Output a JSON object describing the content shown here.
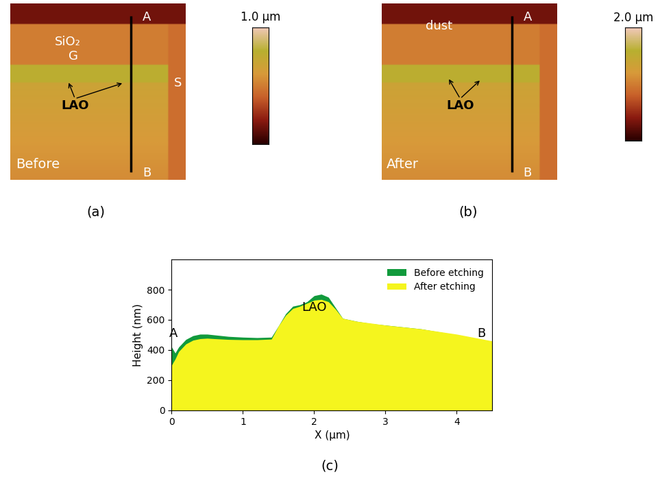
{
  "images": [
    {
      "panel": "(a)",
      "scale_label": "1.0 µm",
      "corner_label": "Before",
      "labels": [
        "SiO₂",
        "G",
        "S",
        "LAO"
      ],
      "line_ends": [
        "A",
        "B"
      ]
    },
    {
      "panel": "(b)",
      "scale_label": "2.0 µm",
      "corner_label": "After",
      "labels": [
        "dust",
        "LAO"
      ],
      "line_ends": [
        "A",
        "B"
      ]
    }
  ],
  "chart_data": {
    "type": "area",
    "panel": "(c)",
    "x_label": "X (µm)",
    "y_label": "Height (nm)",
    "x": [
      0,
      0.05,
      0.1,
      0.2,
      0.3,
      0.4,
      0.5,
      0.6,
      0.8,
      1.0,
      1.2,
      1.4,
      1.5,
      1.6,
      1.7,
      1.8,
      1.9,
      2.0,
      2.1,
      2.2,
      2.3,
      2.4,
      2.5,
      2.6,
      2.8,
      3.0,
      3.5,
      4.0,
      4.5
    ],
    "series": [
      {
        "name": "Before etching",
        "color": "#119a3c",
        "values": [
          420,
          380,
          420,
          470,
          495,
          505,
          505,
          500,
          490,
          485,
          482,
          485,
          560,
          640,
          690,
          700,
          720,
          760,
          770,
          750,
          680,
          610,
          600,
          590,
          575,
          565,
          540,
          500,
          455
        ]
      },
      {
        "name": "After etching",
        "color": "#f5f51e",
        "values": [
          300,
          340,
          390,
          440,
          465,
          475,
          478,
          475,
          470,
          468,
          468,
          472,
          560,
          630,
          675,
          690,
          710,
          730,
          735,
          720,
          670,
          610,
          600,
          590,
          578,
          565,
          540,
          505,
          460
        ]
      }
    ],
    "annotations": [
      {
        "text": "A",
        "x": 0.03,
        "y": 470
      },
      {
        "text": "LAO",
        "x": 2.0,
        "y": 640
      },
      {
        "text": "B",
        "x": 4.35,
        "y": 470
      }
    ],
    "xlim": [
      0,
      4.5
    ],
    "xticks": [
      0,
      1,
      2,
      3,
      4
    ],
    "ylim": [
      0,
      1000
    ],
    "yticks": [
      0,
      200,
      400,
      600,
      800
    ],
    "legend": "upper right",
    "grid": false
  }
}
